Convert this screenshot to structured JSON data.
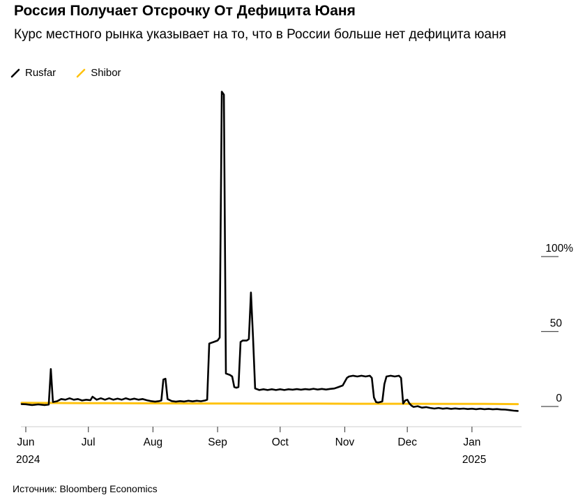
{
  "chart_data": {
    "type": "line",
    "title": "Россия Получает Отсрочку От Дефицита Юаня",
    "subtitle": "Курс местного рынка указывает на то, что в России больше нет дефицита юаня",
    "source": "Источник: Bloomberg Economics",
    "legend": [
      {
        "name": "Rusfar",
        "color": "#000000"
      },
      {
        "name": "Shibor",
        "color": "#FFC20E"
      }
    ],
    "grid": false,
    "legend_position": "top-left",
    "y_axis": {
      "unit": "%",
      "range": [
        -5,
        215
      ],
      "ticks": [
        {
          "value": 100,
          "label": "100%"
        },
        {
          "value": 50,
          "label": "50"
        },
        {
          "value": 0,
          "label": "0"
        }
      ],
      "side": "right"
    },
    "x_axis": {
      "unit": "days from 2024-06-01",
      "range_days": [
        -2,
        236
      ],
      "ticks": [
        {
          "day": 0,
          "label": "Jun",
          "year": "2024"
        },
        {
          "day": 30,
          "label": "Jul"
        },
        {
          "day": 61,
          "label": "Aug"
        },
        {
          "day": 92,
          "label": "Sep"
        },
        {
          "day": 122,
          "label": "Oct"
        },
        {
          "day": 153,
          "label": "Nov"
        },
        {
          "day": 183,
          "label": "Dec"
        },
        {
          "day": 214,
          "label": "Jan",
          "year": "2025"
        }
      ]
    },
    "series": [
      {
        "name": "Rusfar",
        "color": "#000000",
        "stroke_width": 2.6,
        "points": [
          [
            -2,
            1.6
          ],
          [
            0,
            1.5
          ],
          [
            3,
            1
          ],
          [
            6,
            1.4
          ],
          [
            9,
            1
          ],
          [
            11,
            1.3
          ],
          [
            12,
            25
          ],
          [
            13,
            3
          ],
          [
            15,
            3.5
          ],
          [
            17,
            5
          ],
          [
            19,
            4.5
          ],
          [
            21,
            5.5
          ],
          [
            23,
            4.5
          ],
          [
            25,
            5
          ],
          [
            27,
            4
          ],
          [
            29,
            4.5
          ],
          [
            31,
            4.2
          ],
          [
            32,
            6.5
          ],
          [
            34,
            4.5
          ],
          [
            36,
            5.5
          ],
          [
            38,
            4.5
          ],
          [
            40,
            5.5
          ],
          [
            42,
            4.5
          ],
          [
            44,
            5.2
          ],
          [
            46,
            4.5
          ],
          [
            48,
            5.5
          ],
          [
            50,
            4.6
          ],
          [
            52,
            5.2
          ],
          [
            54,
            4.5
          ],
          [
            56,
            5
          ],
          [
            58,
            4.2
          ],
          [
            60,
            3.6
          ],
          [
            62,
            3.2
          ],
          [
            64,
            3.6
          ],
          [
            65,
            4
          ],
          [
            66,
            18
          ],
          [
            67,
            18.5
          ],
          [
            68,
            5
          ],
          [
            70,
            3.6
          ],
          [
            72,
            3.2
          ],
          [
            74,
            3.6
          ],
          [
            76,
            3.3
          ],
          [
            78,
            3.8
          ],
          [
            80,
            3.4
          ],
          [
            82,
            3.8
          ],
          [
            84,
            3.5
          ],
          [
            86,
            4
          ],
          [
            87,
            4.5
          ],
          [
            88,
            42
          ],
          [
            90,
            43
          ],
          [
            92,
            44
          ],
          [
            93,
            46
          ],
          [
            94,
            210
          ],
          [
            95,
            208
          ],
          [
            96,
            22
          ],
          [
            98,
            21
          ],
          [
            99,
            20
          ],
          [
            100,
            13
          ],
          [
            101,
            12.5
          ],
          [
            102,
            13
          ],
          [
            103,
            43
          ],
          [
            104,
            44
          ],
          [
            106,
            44
          ],
          [
            107,
            45
          ],
          [
            108,
            76
          ],
          [
            109,
            46
          ],
          [
            110,
            12
          ],
          [
            112,
            11
          ],
          [
            114,
            11.5
          ],
          [
            116,
            11
          ],
          [
            118,
            11.5
          ],
          [
            120,
            11
          ],
          [
            122,
            11.5
          ],
          [
            124,
            11
          ],
          [
            126,
            11.5
          ],
          [
            128,
            11.2
          ],
          [
            130,
            11.6
          ],
          [
            132,
            11.2
          ],
          [
            134,
            11.6
          ],
          [
            136,
            11.3
          ],
          [
            138,
            11.8
          ],
          [
            140,
            11.3
          ],
          [
            142,
            11.7
          ],
          [
            144,
            11.3
          ],
          [
            146,
            11.7
          ],
          [
            148,
            12
          ],
          [
            150,
            13
          ],
          [
            152,
            14
          ],
          [
            154,
            19
          ],
          [
            155,
            20
          ],
          [
            157,
            20.5
          ],
          [
            159,
            20
          ],
          [
            161,
            20.5
          ],
          [
            163,
            20
          ],
          [
            165,
            20.5
          ],
          [
            166,
            19
          ],
          [
            167,
            6
          ],
          [
            168,
            3
          ],
          [
            169,
            2.6
          ],
          [
            170,
            3
          ],
          [
            171,
            3.4
          ],
          [
            172,
            15
          ],
          [
            173,
            20
          ],
          [
            175,
            20.5
          ],
          [
            177,
            20
          ],
          [
            179,
            20.5
          ],
          [
            180,
            19
          ],
          [
            181,
            2
          ],
          [
            182,
            4
          ],
          [
            183,
            4.5
          ],
          [
            184,
            2
          ],
          [
            185,
            0.5
          ],
          [
            186,
            -0.3
          ],
          [
            188,
            0.2
          ],
          [
            190,
            -0.8
          ],
          [
            192,
            -0.4
          ],
          [
            194,
            -1
          ],
          [
            196,
            -1.4
          ],
          [
            198,
            -1
          ],
          [
            200,
            -1.5
          ],
          [
            202,
            -1.2
          ],
          [
            204,
            -1.6
          ],
          [
            206,
            -1.3
          ],
          [
            208,
            -1.6
          ],
          [
            210,
            -1.4
          ],
          [
            212,
            -1.7
          ],
          [
            214,
            -1.5
          ],
          [
            216,
            -1.8
          ],
          [
            218,
            -1.5
          ],
          [
            220,
            -1.8
          ],
          [
            222,
            -1.6
          ],
          [
            224,
            -1.9
          ],
          [
            226,
            -1.7
          ],
          [
            228,
            -2
          ],
          [
            230,
            -2.1
          ],
          [
            232,
            -2.4
          ],
          [
            234,
            -2.8
          ],
          [
            236,
            -3
          ]
        ]
      },
      {
        "name": "Shibor",
        "color": "#FFC20E",
        "stroke_width": 3,
        "points": [
          [
            -2,
            2.4
          ],
          [
            0,
            2.4
          ],
          [
            20,
            2.3
          ],
          [
            40,
            2.2
          ],
          [
            60,
            2.1
          ],
          [
            80,
            2.0
          ],
          [
            100,
            2.0
          ],
          [
            120,
            1.9
          ],
          [
            140,
            1.9
          ],
          [
            160,
            1.8
          ],
          [
            180,
            1.8
          ],
          [
            200,
            1.7
          ],
          [
            220,
            1.7
          ],
          [
            236,
            1.6
          ]
        ]
      }
    ]
  }
}
